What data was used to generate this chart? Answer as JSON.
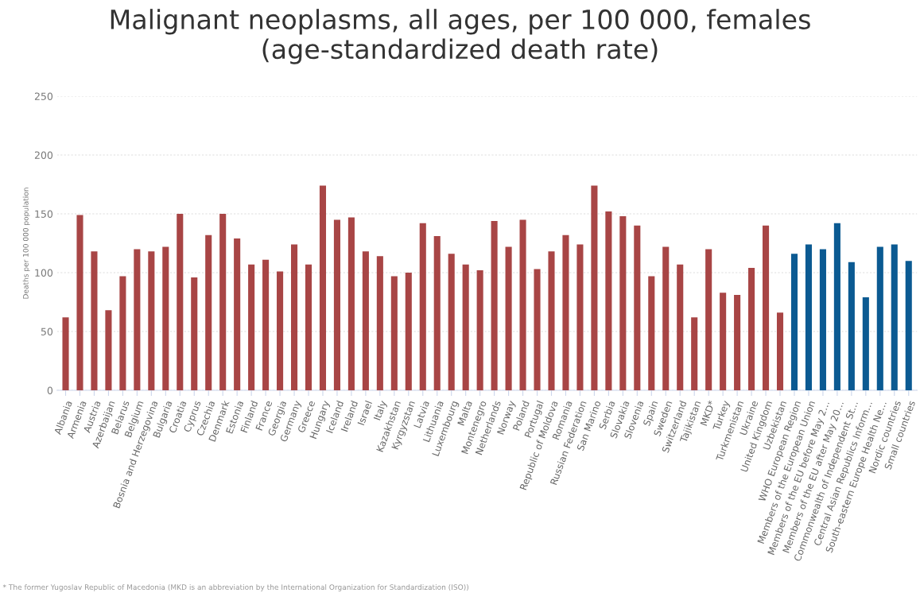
{
  "chart_data": {
    "type": "bar",
    "title": "Malignant neoplasms, all ages, per 100 000, females (age-standardized death rate)",
    "ylabel": "Deaths per 100 000 population",
    "categories": [
      "Albania",
      "Armenia",
      "Austria",
      "Azerbaijan",
      "Belarus",
      "Belgium",
      "Bosnia and Herzegovina",
      "Bulgaria",
      "Croatia",
      "Cyprus",
      "Czechia",
      "Denmark",
      "Estonia",
      "Finland",
      "France",
      "Georgia",
      "Germany",
      "Greece",
      "Hungary",
      "Iceland",
      "Ireland",
      "Israel",
      "Italy",
      "Kazakhstan",
      "Kyrgyzstan",
      "Latvia",
      "Lithuania",
      "Luxembourg",
      "Malta",
      "Montenegro",
      "Netherlands",
      "Norway",
      "Poland",
      "Portugal",
      "Republic of Moldova",
      "Romania",
      "Russian Federation",
      "San Marino",
      "Serbia",
      "Slovakia",
      "Slovenia",
      "Spain",
      "Sweden",
      "Switzerland",
      "Tajikistan",
      "MKD*",
      "Turkey",
      "Turkmenistan",
      "Ukraine",
      "United Kingdom",
      "Uzbekistan",
      "WHO European Region",
      "Members of the European Union",
      "Members of the EU before May 2…",
      "Members of the EU after May 20…",
      "Commonwealth of Independent St…",
      "Central Asian Republics Inform…",
      "South-eastern Europe Health Ne…",
      "Nordic countries",
      "Small countries"
    ],
    "values": [
      62,
      149,
      118,
      68,
      97,
      120,
      118,
      122,
      150,
      96,
      132,
      150,
      129,
      107,
      111,
      101,
      124,
      107,
      174,
      145,
      147,
      118,
      114,
      97,
      100,
      142,
      131,
      116,
      107,
      102,
      144,
      122,
      145,
      103,
      118,
      132,
      124,
      174,
      152,
      148,
      140,
      97,
      122,
      107,
      62,
      120,
      83,
      81,
      104,
      140,
      66,
      116,
      124,
      120,
      142,
      109,
      79,
      122,
      124,
      110
    ],
    "colors": [
      "#a84545",
      "#a84545",
      "#a84545",
      "#a84545",
      "#a84545",
      "#a84545",
      "#a84545",
      "#a84545",
      "#a84545",
      "#a84545",
      "#a84545",
      "#a84545",
      "#a84545",
      "#a84545",
      "#a84545",
      "#a84545",
      "#a84545",
      "#a84545",
      "#a84545",
      "#a84545",
      "#a84545",
      "#a84545",
      "#a84545",
      "#a84545",
      "#a84545",
      "#a84545",
      "#a84545",
      "#a84545",
      "#a84545",
      "#a84545",
      "#a84545",
      "#a84545",
      "#a84545",
      "#a84545",
      "#a84545",
      "#a84545",
      "#a84545",
      "#a84545",
      "#a84545",
      "#a84545",
      "#a84545",
      "#a84545",
      "#a84545",
      "#a84545",
      "#a84545",
      "#a84545",
      "#a84545",
      "#a84545",
      "#a84545",
      "#a84545",
      "#a84545",
      "#0b5a92",
      "#0b5a92",
      "#0b5a92",
      "#0b5a92",
      "#0b5a92",
      "#0b5a92",
      "#0b5a92",
      "#0b5a92",
      "#0b5a92"
    ],
    "ylim": [
      0,
      250
    ],
    "yticks": [
      0,
      50,
      100,
      150,
      200,
      250
    ],
    "grid": "y",
    "annotations": [
      "* The former Yugoslav Republic of Macedonia (MKD is an abbreviation by the International Organization for Standardization (ISO))"
    ]
  }
}
